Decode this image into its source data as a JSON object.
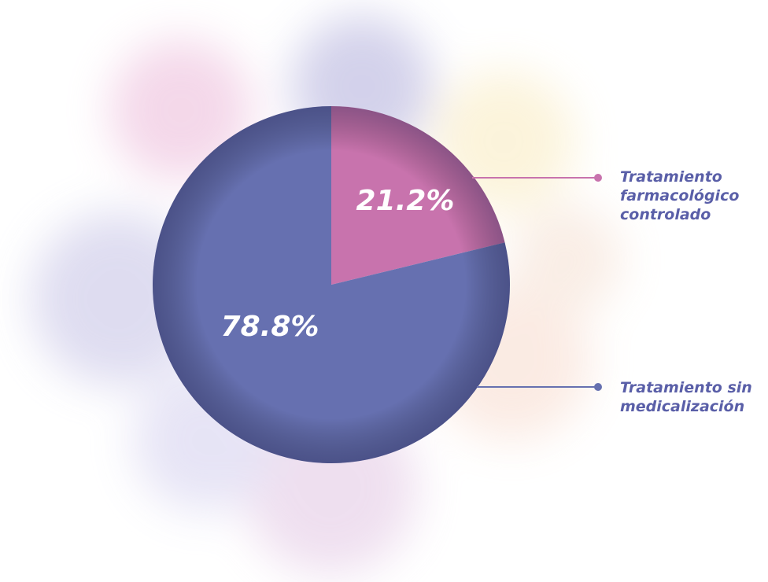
{
  "chart_data": {
    "type": "pie",
    "categories": [
      "Tratamiento farmacológico controlado",
      "Tratamiento sin medicalización"
    ],
    "values": [
      21.2,
      78.8
    ],
    "value_labels": [
      "21.2%",
      "78.8%"
    ],
    "colors": [
      "#c873ad",
      "#6670b0"
    ]
  }
}
